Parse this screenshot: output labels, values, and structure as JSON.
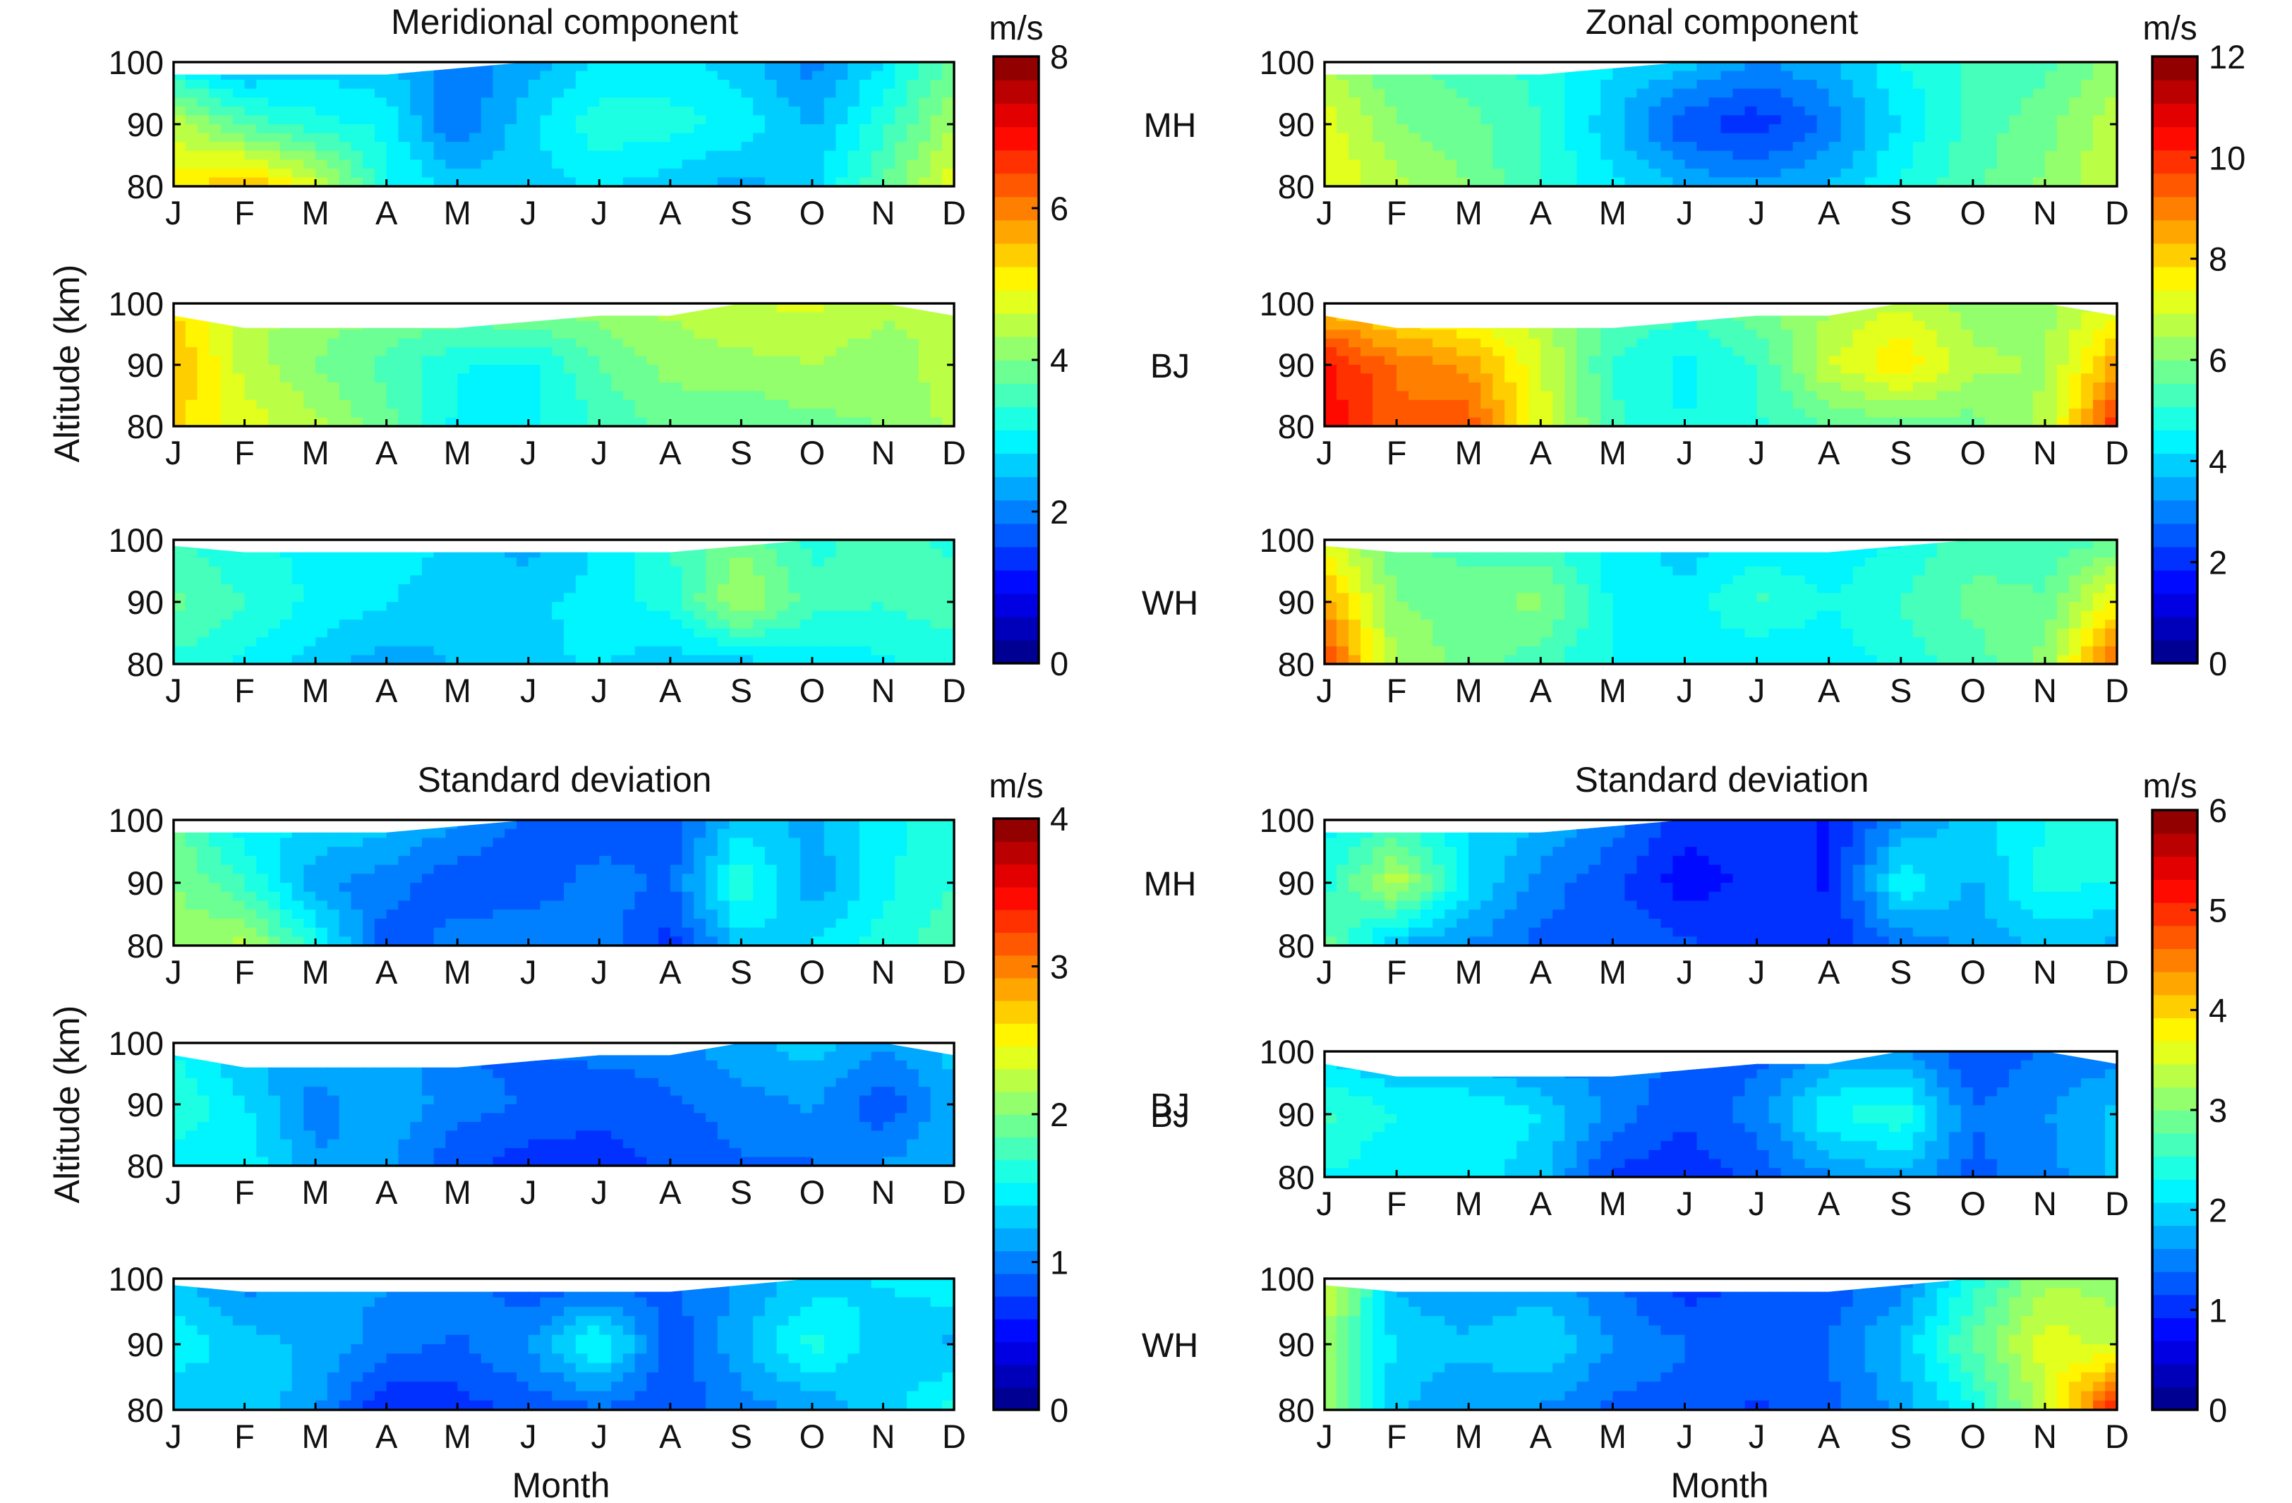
{
  "chart_data": [
    {
      "type": "heatmap",
      "title": "Meridional component",
      "unit": "m/s",
      "months": [
        "J",
        "F",
        "M",
        "A",
        "M",
        "J",
        "J",
        "A",
        "S",
        "O",
        "N",
        "D"
      ],
      "altitudes_km": [
        80,
        90,
        100
      ],
      "ylabel": "Altitude (km)",
      "xlabel": "",
      "colorbar": {
        "min": 0,
        "max": 8,
        "ticks": [
          "0",
          "2",
          "4",
          "6",
          "8"
        ]
      },
      "rows": [
        {
          "site": "MH",
          "top_km": [
            98,
            98,
            98,
            98,
            99,
            100,
            100,
            100,
            100,
            100,
            100,
            100
          ],
          "bands": {
            "98": [
              2.9,
              2.3,
              2.6,
              2.5,
              2.0,
              2.3,
              2.8,
              2.9,
              2.6,
              2.0,
              2.8,
              3.8
            ],
            "90": [
              4.5,
              3.6,
              3.2,
              3.0,
              1.8,
              2.7,
              3.3,
              3.2,
              3.0,
              2.4,
              3.3,
              4.3
            ],
            "82": [
              5.1,
              5.6,
              4.7,
              3.1,
              2.7,
              2.6,
              2.8,
              2.6,
              2.3,
              2.7,
              3.7,
              4.9
            ]
          }
        },
        {
          "site": "BJ",
          "top_km": [
            98,
            96,
            96,
            96,
            96,
            97,
            98,
            98,
            100,
            100,
            100,
            98
          ],
          "bands": {
            "97": [
              5.2,
              4.4,
              4.2,
              4.1,
              4.0,
              4.1,
              4.2,
              4.4,
              4.6,
              4.7,
              4.4,
              4.3
            ],
            "89": [
              5.6,
              4.5,
              4.0,
              3.6,
              3.1,
              3.0,
              3.7,
              4.1,
              4.2,
              4.3,
              4.1,
              4.5
            ],
            "82": [
              5.3,
              4.8,
              4.4,
              3.8,
              3.0,
              3.0,
              3.4,
              3.8,
              3.7,
              3.9,
              4.0,
              4.4
            ]
          }
        },
        {
          "site": "WH",
          "top_km": [
            99,
            98,
            98,
            98,
            98,
            98,
            98,
            98,
            99,
            100,
            100,
            100
          ],
          "bands": {
            "97": [
              3.4,
              3.1,
              3.0,
              3.0,
              2.7,
              2.3,
              2.8,
              3.4,
              3.9,
              3.3,
              3.5,
              3.3
            ],
            "90": [
              3.8,
              3.4,
              3.0,
              2.8,
              2.5,
              2.7,
              2.9,
              3.2,
              4.4,
              3.5,
              3.4,
              3.6
            ],
            "82": [
              3.3,
              3.0,
              2.6,
              2.3,
              2.5,
              2.7,
              2.8,
              2.6,
              2.6,
              2.9,
              3.0,
              3.2
            ]
          }
        }
      ]
    },
    {
      "type": "heatmap",
      "title": "Zonal component",
      "unit": "m/s",
      "months": [
        "J",
        "F",
        "M",
        "A",
        "M",
        "J",
        "J",
        "A",
        "S",
        "O",
        "N",
        "D"
      ],
      "altitudes_km": [
        80,
        90,
        100
      ],
      "ylabel": "",
      "xlabel": "",
      "colorbar": {
        "min": 0,
        "max": 12,
        "ticks": [
          "0",
          "2",
          "4",
          "6",
          "8",
          "10",
          "12"
        ]
      },
      "rows": [
        {
          "site": "MH",
          "top_km": [
            98,
            98,
            98,
            98,
            99,
            100,
            100,
            100,
            100,
            100,
            100,
            100
          ],
          "bands": {
            "98": [
              6.5,
              5.6,
              5.3,
              4.9,
              4.2,
              3.9,
              3.2,
              3.6,
              4.6,
              5.2,
              5.4,
              6.2
            ],
            "90": [
              7.2,
              6.0,
              5.7,
              5.1,
              3.8,
              2.4,
              2.0,
              2.9,
              4.2,
              5.3,
              5.8,
              6.8
            ],
            "82": [
              7.4,
              6.6,
              6.0,
              5.0,
              4.3,
              3.6,
              3.3,
              3.7,
              4.7,
              5.4,
              6.1,
              6.9
            ]
          }
        },
        {
          "site": "BJ",
          "top_km": [
            98,
            96,
            96,
            96,
            96,
            97,
            98,
            98,
            100,
            100,
            100,
            98
          ],
          "bands": {
            "97": [
              8.0,
              7.3,
              7.0,
              6.6,
              5.6,
              5.3,
              5.9,
              6.4,
              6.9,
              6.2,
              6.3,
              7.1
            ],
            "89": [
              10.3,
              9.2,
              8.6,
              7.0,
              5.0,
              4.5,
              5.1,
              6.9,
              7.8,
              6.6,
              6.4,
              8.6
            ],
            "82": [
              10.6,
              9.3,
              9.6,
              7.2,
              5.2,
              4.6,
              5.0,
              5.5,
              5.7,
              5.8,
              6.6,
              10.1
            ]
          }
        },
        {
          "site": "WH",
          "top_km": [
            99,
            98,
            98,
            98,
            98,
            98,
            98,
            98,
            99,
            100,
            100,
            100
          ],
          "bands": {
            "97": [
              7.0,
              5.6,
              5.3,
              5.1,
              4.4,
              3.9,
              4.2,
              4.3,
              4.6,
              5.4,
              5.2,
              5.6
            ],
            "90": [
              8.6,
              6.0,
              5.8,
              6.2,
              4.5,
              4.3,
              5.2,
              4.6,
              5.1,
              5.7,
              5.6,
              7.6
            ],
            "82": [
              10.0,
              6.4,
              5.8,
              5.2,
              4.6,
              4.5,
              4.1,
              4.3,
              4.8,
              5.3,
              6.2,
              9.6
            ]
          }
        }
      ]
    },
    {
      "type": "heatmap",
      "title": "Standard deviation",
      "unit": "m/s",
      "months": [
        "J",
        "F",
        "M",
        "A",
        "M",
        "J",
        "J",
        "A",
        "S",
        "O",
        "N",
        "D"
      ],
      "altitudes_km": [
        80,
        90,
        100
      ],
      "ylabel": "Altitude (km)",
      "xlabel": "Month",
      "colorbar": {
        "min": 0,
        "max": 4,
        "ticks": [
          "0",
          "1",
          "2",
          "3",
          "4"
        ]
      },
      "rows": [
        {
          "site": "MH",
          "top_km": [
            98,
            98,
            98,
            98,
            99,
            100,
            100,
            100,
            100,
            100,
            100,
            100
          ],
          "bands": {
            "98": [
              1.9,
              1.4,
              1.4,
              1.3,
              1.1,
              0.9,
              0.8,
              0.8,
              1.3,
              1.2,
              1.5,
              1.6
            ],
            "90": [
              2.0,
              1.7,
              1.1,
              1.0,
              0.8,
              0.8,
              1.0,
              0.9,
              1.7,
              1.1,
              1.5,
              1.7
            ],
            "82": [
              2.1,
              2.2,
              1.6,
              0.8,
              1.0,
              1.1,
              1.0,
              0.7,
              1.3,
              1.4,
              1.6,
              1.8
            ]
          }
        },
        {
          "site": "BJ",
          "top_km": [
            98,
            96,
            96,
            96,
            96,
            97,
            98,
            98,
            100,
            100,
            100,
            98
          ],
          "bands": {
            "97": [
              1.5,
              1.2,
              1.2,
              1.2,
              0.9,
              0.9,
              1.0,
              1.0,
              1.2,
              1.3,
              1.1,
              1.3
            ],
            "89": [
              1.7,
              1.4,
              1.0,
              1.2,
              1.0,
              0.9,
              0.8,
              0.9,
              1.0,
              1.1,
              0.8,
              1.2
            ],
            "82": [
              1.4,
              1.5,
              1.1,
              1.1,
              0.8,
              0.7,
              0.7,
              0.8,
              0.9,
              0.9,
              1.1,
              1.2
            ]
          }
        },
        {
          "site": "WH",
          "top_km": [
            99,
            98,
            98,
            98,
            98,
            98,
            98,
            98,
            99,
            100,
            100,
            100
          ],
          "bands": {
            "97": [
              1.3,
              1.0,
              1.1,
              1.1,
              1.0,
              0.8,
              0.8,
              0.9,
              1.1,
              1.3,
              1.4,
              1.5
            ],
            "90": [
              1.5,
              1.3,
              1.2,
              1.0,
              0.9,
              1.1,
              1.6,
              0.8,
              1.2,
              1.6,
              1.3,
              1.2
            ],
            "82": [
              1.2,
              1.4,
              1.1,
              0.6,
              0.7,
              0.8,
              0.9,
              0.8,
              1.0,
              1.1,
              1.3,
              1.6
            ]
          }
        }
      ]
    },
    {
      "type": "heatmap",
      "title": "Standard deviation",
      "unit": "m/s",
      "months": [
        "J",
        "F",
        "M",
        "A",
        "M",
        "J",
        "J",
        "A",
        "S",
        "O",
        "N",
        "D"
      ],
      "altitudes_km": [
        80,
        90,
        100
      ],
      "ylabel": "",
      "xlabel": "Month",
      "colorbar": {
        "min": 0,
        "max": 6,
        "ticks": [
          "0",
          "1",
          "2",
          "3",
          "4",
          "5",
          "6"
        ]
      },
      "rows": [
        {
          "site": "MH",
          "top_km": [
            98,
            98,
            98,
            98,
            99,
            100,
            100,
            100,
            100,
            100,
            100,
            100
          ],
          "bands": {
            "98": [
              2.2,
              2.5,
              2.1,
              1.9,
              1.5,
              1.0,
              1.0,
              0.9,
              1.6,
              2.0,
              2.3,
              2.4
            ],
            "90": [
              2.4,
              3.4,
              2.1,
              1.5,
              1.2,
              0.8,
              1.0,
              0.9,
              2.3,
              1.8,
              2.4,
              2.3
            ],
            "82": [
              2.9,
              1.8,
              1.6,
              1.3,
              1.4,
              1.2,
              1.1,
              1.0,
              1.4,
              1.7,
              1.9,
              1.8
            ]
          }
        },
        {
          "site": "BJ",
          "top_km": [
            98,
            96,
            96,
            96,
            96,
            97,
            98,
            98,
            100,
            100,
            100,
            98
          ],
          "bands": {
            "97": [
              2.0,
              1.8,
              1.7,
              1.4,
              1.6,
              1.3,
              1.3,
              1.6,
              1.6,
              1.2,
              1.4,
              1.5
            ],
            "89": [
              2.6,
              2.3,
              2.3,
              2.1,
              1.5,
              1.2,
              1.5,
              2.3,
              2.5,
              1.4,
              1.6,
              1.9
            ],
            "82": [
              2.3,
              2.1,
              2.2,
              1.9,
              1.1,
              1.0,
              1.2,
              1.6,
              1.8,
              1.3,
              1.5,
              1.9
            ]
          }
        },
        {
          "site": "WH",
          "top_km": [
            99,
            98,
            98,
            98,
            98,
            98,
            98,
            98,
            99,
            100,
            100,
            100
          ],
          "bands": {
            "97": [
              3.6,
              1.8,
              1.6,
              1.7,
              1.4,
              1.0,
              1.2,
              1.2,
              1.5,
              2.4,
              3.2,
              3.1
            ],
            "90": [
              3.2,
              2.0,
              1.9,
              2.1,
              1.6,
              1.4,
              1.3,
              1.4,
              1.9,
              2.8,
              3.6,
              3.4
            ],
            "82": [
              3.1,
              1.9,
              1.6,
              1.6,
              1.3,
              1.3,
              1.1,
              1.3,
              1.7,
              2.3,
              3.4,
              5.2
            ]
          }
        }
      ]
    }
  ]
}
